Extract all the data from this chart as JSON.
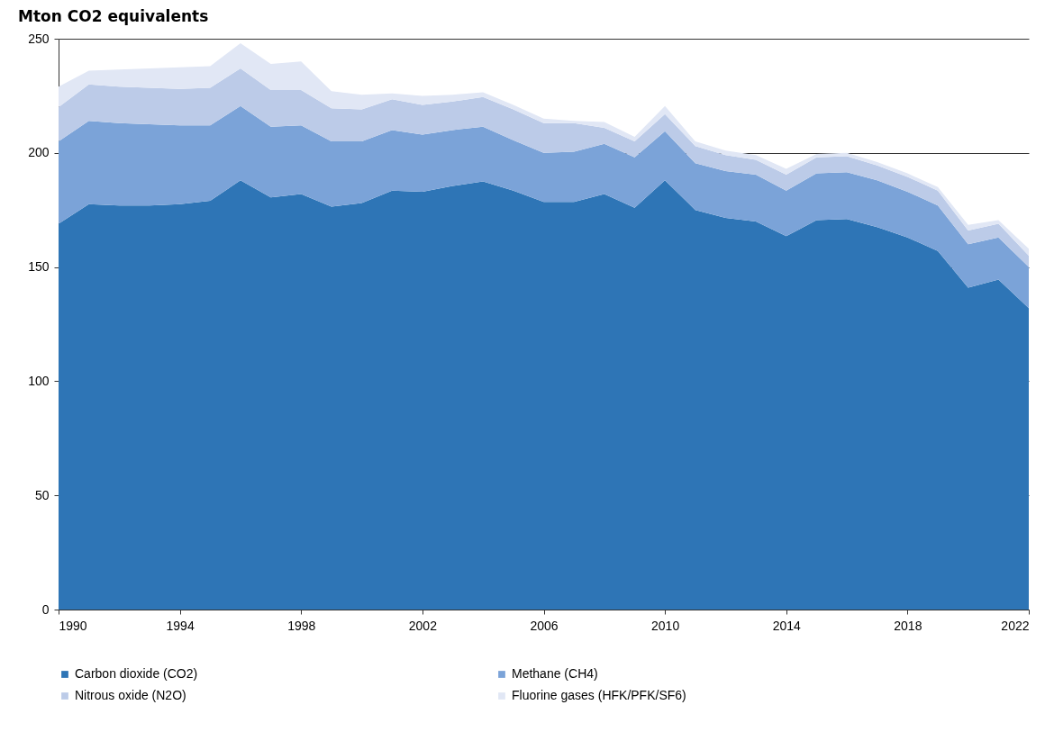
{
  "chart_data": {
    "type": "area",
    "title": "Mton CO2 equivalents",
    "stacked": true,
    "x": [
      1990,
      1991,
      1992,
      1993,
      1994,
      1995,
      1996,
      1997,
      1998,
      1999,
      2000,
      2001,
      2002,
      2003,
      2004,
      2005,
      2006,
      2007,
      2008,
      2009,
      2010,
      2011,
      2012,
      2013,
      2014,
      2015,
      2016,
      2017,
      2018,
      2019,
      2020,
      2021,
      2022
    ],
    "xlim": [
      1990,
      2022
    ],
    "xticks": [
      1990,
      1994,
      1998,
      2002,
      2006,
      2010,
      2014,
      2018,
      2022
    ],
    "ylim": [
      0,
      250
    ],
    "yticks": [
      0,
      50,
      100,
      150,
      200,
      250
    ],
    "grid": "y",
    "legend": "bottom",
    "series": [
      {
        "name": "Carbon dioxide (CO2)",
        "color": "#2e75b6",
        "values": [
          169,
          177.5,
          177,
          177,
          177.5,
          179,
          188,
          180.5,
          182,
          176.5,
          178,
          183.5,
          183,
          185.5,
          187.5,
          183.5,
          178.5,
          178.5,
          182,
          176,
          188,
          175,
          171.5,
          170,
          163.5,
          170.5,
          171,
          167.5,
          163,
          157,
          141,
          144.5,
          132
        ]
      },
      {
        "name": "Methane (CH4)",
        "color": "#7ba3d8",
        "values": [
          36,
          36.5,
          36,
          35.5,
          34.5,
          33,
          32.5,
          31,
          30,
          28.5,
          27,
          26.5,
          25,
          24.5,
          24,
          22,
          21.5,
          22,
          22,
          22,
          21.5,
          20.5,
          20.5,
          20.5,
          20,
          20.5,
          20.5,
          20.5,
          20,
          20,
          19,
          18.5,
          18
        ]
      },
      {
        "name": "Nitrous oxide (N2O)",
        "color": "#bccbe8",
        "values": [
          15,
          16,
          16,
          16,
          16,
          16.5,
          16.5,
          16,
          15.5,
          14.5,
          14,
          13.5,
          13,
          12.5,
          13,
          13.5,
          13,
          12.5,
          7,
          7,
          7.5,
          7.5,
          7,
          6.5,
          7,
          7,
          7,
          6.5,
          6.5,
          6.5,
          6,
          6,
          5
        ]
      },
      {
        "name": "Fluorine gases (HFK/PFK/SF6)",
        "color": "#e1e7f5",
        "values": [
          9,
          6,
          7.5,
          8.5,
          9.5,
          9.5,
          11,
          11.5,
          12.5,
          7.5,
          6.5,
          2.5,
          4,
          3,
          2,
          2,
          2,
          1,
          2.5,
          2,
          3.5,
          2,
          2,
          2,
          2.5,
          1.5,
          1.5,
          1.5,
          1.5,
          1.5,
          2.5,
          1.5,
          3
        ]
      }
    ]
  }
}
